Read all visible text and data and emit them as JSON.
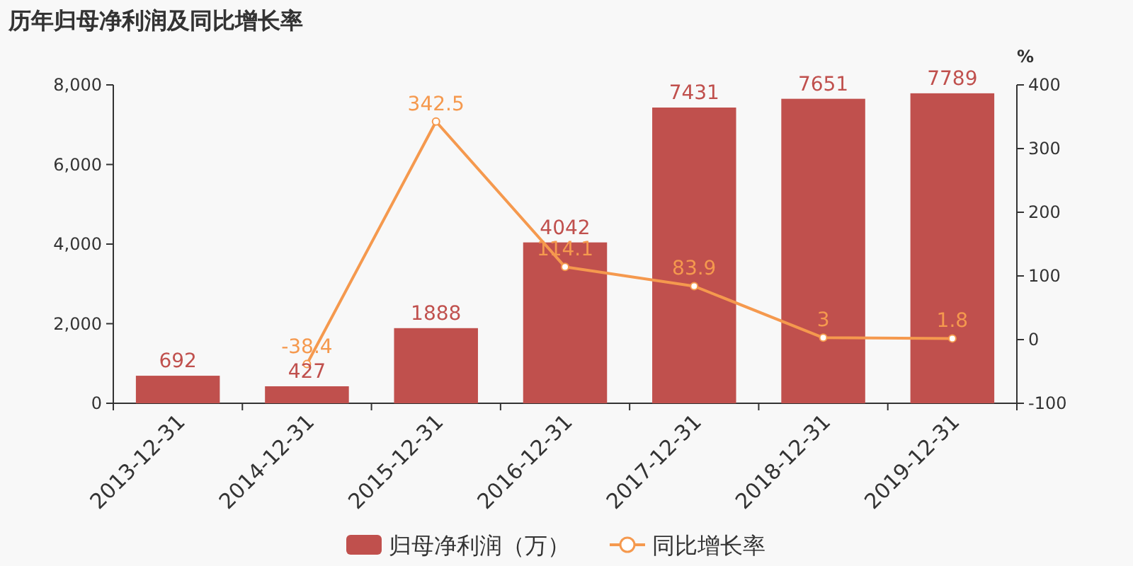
{
  "chart_data": {
    "type": "bar",
    "title": "历年归母净利润及同比增长率",
    "categories": [
      "2013-12-31",
      "2014-12-31",
      "2015-12-31",
      "2016-12-31",
      "2017-12-31",
      "2018-12-31",
      "2019-12-31"
    ],
    "series": [
      {
        "name": "归母净利润（万）",
        "color": "#c0504d",
        "values": [
          692,
          427,
          1888,
          4042,
          7431,
          7651,
          7789
        ]
      },
      {
        "name": "同比增长率",
        "type": "line",
        "axis": "y2",
        "color": "#f5994e",
        "marker": "circle",
        "values": [
          null,
          -38.4,
          342.5,
          114.1,
          83.9,
          3,
          1.8
        ]
      }
    ],
    "ylim": [
      0,
      8000
    ],
    "yticks": [
      0,
      {
        "value": 2000,
        "label": "2,000"
      },
      {
        "value": 4000,
        "label": "4,000"
      },
      {
        "value": 6000,
        "label": "6,000"
      },
      {
        "value": 8000,
        "label": "8,000"
      }
    ],
    "y2lim": [
      -100,
      400
    ],
    "y2ticks": [
      -100,
      0,
      100,
      200,
      300,
      400
    ],
    "y2label": "%",
    "data_labels": true,
    "legend": "bottom"
  }
}
